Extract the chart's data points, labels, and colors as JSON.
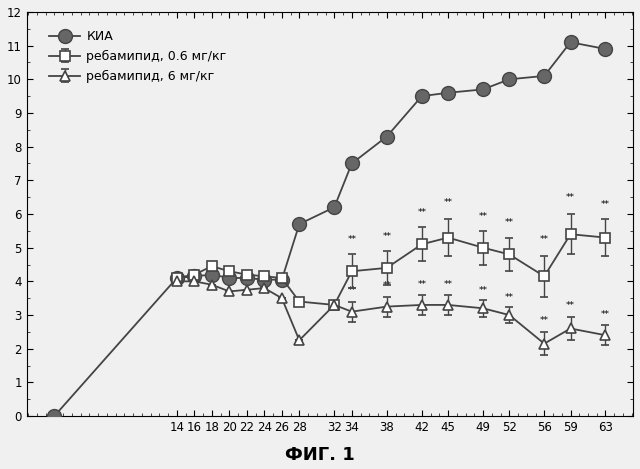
{
  "x_ticks": [
    14,
    16,
    18,
    20,
    22,
    24,
    26,
    28,
    32,
    34,
    38,
    42,
    45,
    49,
    52,
    56,
    59,
    63
  ],
  "kia_x": [
    0,
    14,
    16,
    18,
    20,
    22,
    24,
    26,
    28,
    32,
    34,
    38,
    42,
    45,
    49,
    52,
    56,
    59,
    63
  ],
  "kia_y": [
    0,
    4.1,
    4.15,
    4.2,
    4.1,
    4.1,
    4.05,
    4.05,
    5.7,
    6.2,
    7.5,
    8.3,
    9.5,
    9.6,
    9.7,
    10.0,
    10.1,
    11.1,
    10.9
  ],
  "reb06_x": [
    14,
    16,
    18,
    20,
    22,
    24,
    26,
    28,
    32,
    34,
    38,
    42,
    45,
    49,
    52,
    56,
    59,
    63
  ],
  "reb06_y": [
    4.1,
    4.2,
    4.45,
    4.3,
    4.2,
    4.15,
    4.1,
    3.4,
    3.3,
    4.3,
    4.4,
    5.1,
    5.3,
    5.0,
    4.8,
    4.15,
    5.4,
    5.3
  ],
  "reb06_yerr": [
    0.0,
    0.0,
    0.0,
    0.0,
    0.0,
    0.0,
    0.0,
    0.0,
    0.0,
    0.5,
    0.5,
    0.5,
    0.55,
    0.5,
    0.5,
    0.6,
    0.6,
    0.55
  ],
  "reb6_x": [
    14,
    16,
    18,
    20,
    22,
    24,
    26,
    28,
    32,
    34,
    38,
    42,
    45,
    49,
    52,
    56,
    59,
    63
  ],
  "reb6_y": [
    4.0,
    4.0,
    3.9,
    3.7,
    3.75,
    3.8,
    3.5,
    2.25,
    3.3,
    3.1,
    3.25,
    3.3,
    3.3,
    3.2,
    3.0,
    2.15,
    2.6,
    2.4
  ],
  "reb6_yerr": [
    0.0,
    0.0,
    0.0,
    0.0,
    0.0,
    0.0,
    0.0,
    0.0,
    0.0,
    0.3,
    0.3,
    0.3,
    0.3,
    0.25,
    0.25,
    0.35,
    0.35,
    0.3
  ],
  "sig_x_06": [
    34,
    38,
    42,
    45,
    49,
    52,
    56,
    59,
    63
  ],
  "sig_y_06_extra": [
    0.3,
    0.3,
    0.3,
    0.35,
    0.3,
    0.3,
    0.35,
    0.35,
    0.3
  ],
  "sig_x_6": [
    34,
    38,
    42,
    45,
    49,
    52,
    56,
    59,
    63
  ],
  "sig_y_6_extra": [
    0.18,
    0.18,
    0.18,
    0.18,
    0.15,
    0.15,
    0.2,
    0.2,
    0.18
  ],
  "ylim": [
    0,
    12
  ],
  "yticks": [
    0,
    1,
    2,
    3,
    4,
    5,
    6,
    7,
    8,
    9,
    10,
    11,
    12
  ],
  "legend_reb06": "ребамипид, 0.6 мг/кг",
  "legend_reb6": "ребамипид, 6 мг/кг",
  "legend_kia": "КИА",
  "fig_label": "ФИГ. 1",
  "color_line": "#444444",
  "color_kia_marker": "#666666",
  "bg_color": "#f0f0f0"
}
